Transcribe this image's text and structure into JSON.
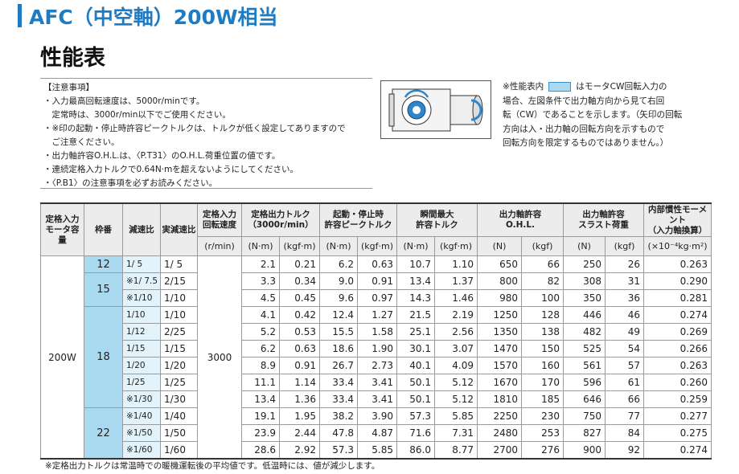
{
  "header": {
    "title": "AFC（中空軸）200W相当",
    "subtitle": "性能表"
  },
  "notes": {
    "heading": "【注意事項】",
    "items": [
      "・入力最高回転速度は、5000r/minです。",
      "　定常時は、3000r/min以下でご使用ください。",
      "・※印の起動・停止時許容ピークトルクは、トルクが低く設定してありますので",
      "　ご注意ください。",
      "・出力軸許容O.H.L.は、〈P.T31〉のO.H.L.荷重位置の値です。",
      "・連続定格入力トルクで0.64N·mを超えないようにしてください。",
      "・〈P.B1〉の注意事項を必ずお読みください。"
    ]
  },
  "legend": {
    "prefix": "※性能表内",
    "lines": [
      "はモータCW回転入力の",
      "場合、左図条件で出力軸方向から見て右回",
      "転（CW）であることを示します。（矢印の回転",
      "方向は入・出力軸の回転方向を示すもので",
      "回転方向を限定するものではありません。）"
    ]
  },
  "table": {
    "header": [
      "定格入力\nモータ容量",
      "枠番",
      "減速比",
      "実減速比",
      "定格入力\n回転速度",
      "定格出力トルク\n（3000r/min）",
      "起動・停止時\n許容ピークトルク",
      "瞬間最大\n許容トルク",
      "出力軸許容\nO.H.L.",
      "出力軸許容\nスラスト荷重",
      "内部慣性モーメント\n（入力軸換算）"
    ],
    "units": [
      "(r/min)",
      "(N·m)",
      "(kgf·m)",
      "(N·m)",
      "(kgf·m)",
      "(N·m)",
      "(kgf·m)",
      "(N)",
      "(kgf)",
      "(N)",
      "(kgf)",
      "(×10⁻⁴kg·m²)"
    ],
    "capacity": "200W",
    "speed": "3000",
    "groups": [
      {
        "frame": "12",
        "rows": [
          [
            "1/ 5",
            "1/ 5",
            "2.1",
            "0.21",
            "6.2",
            "0.63",
            "10.7",
            "1.10",
            "650",
            "66",
            "250",
            "26",
            "0.263"
          ]
        ]
      },
      {
        "frame": "15",
        "rows": [
          [
            "※1/ 7.5",
            "2/15",
            "3.3",
            "0.34",
            "9.0",
            "0.91",
            "13.4",
            "1.37",
            "800",
            "82",
            "308",
            "31",
            "0.290"
          ],
          [
            "※1/10",
            "1/10",
            "4.5",
            "0.45",
            "9.6",
            "0.97",
            "14.3",
            "1.46",
            "980",
            "100",
            "350",
            "36",
            "0.281"
          ]
        ]
      },
      {
        "frame": "18",
        "rows": [
          [
            "1/10",
            "1/10",
            "4.1",
            "0.42",
            "12.4",
            "1.27",
            "21.5",
            "2.19",
            "1250",
            "128",
            "446",
            "46",
            "0.274"
          ],
          [
            "1/12",
            "2/25",
            "5.2",
            "0.53",
            "15.5",
            "1.58",
            "25.1",
            "2.56",
            "1350",
            "138",
            "482",
            "49",
            "0.269"
          ],
          [
            "1/15",
            "1/15",
            "6.2",
            "0.63",
            "18.6",
            "1.90",
            "30.1",
            "3.07",
            "1470",
            "150",
            "525",
            "54",
            "0.266"
          ],
          [
            "1/20",
            "1/20",
            "8.9",
            "0.91",
            "26.7",
            "2.73",
            "40.1",
            "4.09",
            "1570",
            "160",
            "561",
            "57",
            "0.263"
          ],
          [
            "1/25",
            "1/25",
            "11.1",
            "1.14",
            "33.4",
            "3.41",
            "50.1",
            "5.12",
            "1670",
            "170",
            "596",
            "61",
            "0.260"
          ],
          [
            "※1/30",
            "1/30",
            "13.4",
            "1.36",
            "33.4",
            "3.41",
            "50.1",
            "5.12",
            "1810",
            "185",
            "646",
            "66",
            "0.259"
          ]
        ]
      },
      {
        "frame": "22",
        "rows": [
          [
            "※1/40",
            "1/40",
            "19.1",
            "1.95",
            "38.2",
            "3.90",
            "57.3",
            "5.85",
            "2250",
            "230",
            "750",
            "77",
            "0.277"
          ],
          [
            "※1/50",
            "1/50",
            "23.9",
            "2.44",
            "47.8",
            "4.87",
            "71.6",
            "7.31",
            "2480",
            "253",
            "827",
            "84",
            "0.275"
          ],
          [
            "※1/60",
            "1/60",
            "28.6",
            "2.92",
            "57.3",
            "5.85",
            "86.0",
            "8.77",
            "2700",
            "276",
            "900",
            "92",
            "0.274"
          ]
        ]
      }
    ]
  },
  "footnote": "※定格出力トルクは常温時での暖機運転後の平均値です。低温時には、値が減少します。"
}
